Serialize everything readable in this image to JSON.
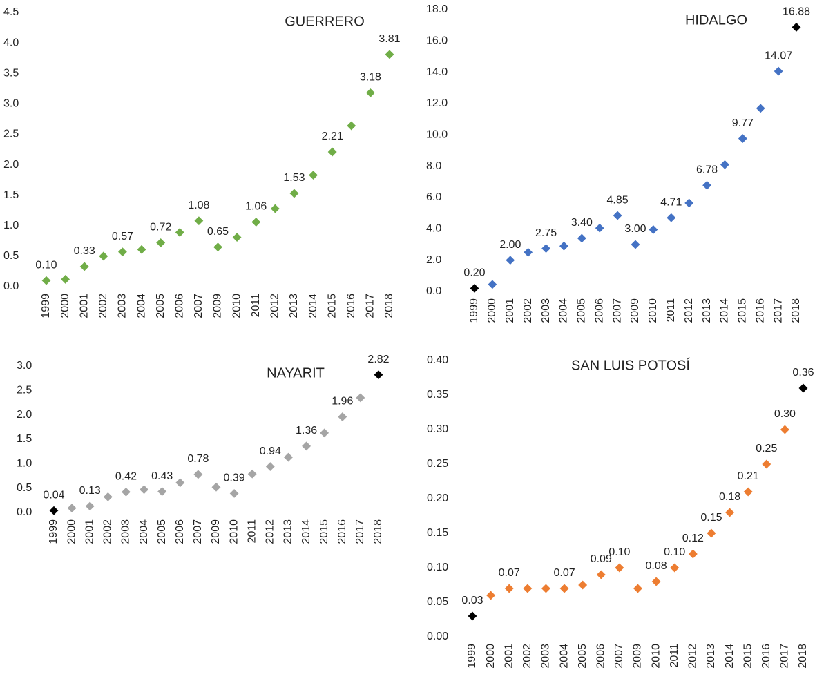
{
  "chart_data": [
    {
      "type": "scatter",
      "title": "GUERRERO",
      "categories": [
        "1999",
        "2000",
        "2001",
        "2002",
        "2003",
        "2004",
        "2005",
        "2006",
        "2007",
        "2009",
        "2010",
        "2011",
        "2012",
        "2013",
        "2014",
        "2015",
        "2016",
        "2017",
        "2018"
      ],
      "values": [
        0.1,
        0.12,
        0.33,
        0.5,
        0.57,
        0.61,
        0.72,
        0.89,
        1.08,
        0.65,
        0.81,
        1.06,
        1.28,
        1.53,
        1.83,
        2.21,
        2.64,
        3.18,
        3.81
      ],
      "value_labels": [
        "0.10",
        null,
        "0.33",
        null,
        "0.57",
        null,
        "0.72",
        null,
        "1.08",
        "0.65",
        null,
        "1.06",
        null,
        "1.53",
        null,
        "2.21",
        null,
        "3.18",
        "3.81"
      ],
      "colors": [
        "#70ad47",
        "#70ad47",
        "#70ad47",
        "#70ad47",
        "#70ad47",
        "#70ad47",
        "#70ad47",
        "#70ad47",
        "#70ad47",
        "#70ad47",
        "#70ad47",
        "#70ad47",
        "#70ad47",
        "#70ad47",
        "#70ad47",
        "#70ad47",
        "#70ad47",
        "#70ad47",
        "#70ad47"
      ],
      "ylim": [
        0,
        4.5
      ],
      "yticks": [
        {
          "value": 0,
          "label": "0.0"
        },
        0.5,
        {
          "value": 1,
          "label": "1.0"
        },
        1.5,
        {
          "value": 2,
          "label": "2.0"
        },
        2.5,
        {
          "value": 3,
          "label": "3.0"
        },
        3.5,
        {
          "value": 4,
          "label": "4.0"
        },
        4.5
      ]
    },
    {
      "type": "scatter",
      "title": "HIDALGO",
      "categories": [
        "1999",
        "2000",
        "2001",
        "2002",
        "2003",
        "2004",
        "2005",
        "2006",
        "2007",
        "2009",
        "2010",
        "2011",
        "2012",
        "2013",
        "2014",
        "2015",
        "2016",
        "2017",
        "2018"
      ],
      "values": [
        0.2,
        0.45,
        2.0,
        2.5,
        2.75,
        2.9,
        3.4,
        4.05,
        4.85,
        3.0,
        3.95,
        4.71,
        5.65,
        6.78,
        8.1,
        9.77,
        11.7,
        14.07,
        16.88
      ],
      "value_labels": [
        "0.20",
        null,
        "2.00",
        null,
        "2.75",
        null,
        "3.40",
        null,
        "4.85",
        "3.00",
        null,
        "4.71",
        null,
        "6.78",
        null,
        "9.77",
        null,
        "14.07",
        "16.88"
      ],
      "colors": [
        "#000000",
        "#4472c4",
        "#4472c4",
        "#4472c4",
        "#4472c4",
        "#4472c4",
        "#4472c4",
        "#4472c4",
        "#4472c4",
        "#4472c4",
        "#4472c4",
        "#4472c4",
        "#4472c4",
        "#4472c4",
        "#4472c4",
        "#4472c4",
        "#4472c4",
        "#4472c4",
        "#000000"
      ],
      "ylim": [
        0,
        18
      ],
      "yticks": [
        {
          "value": 0,
          "label": "0.0"
        },
        {
          "value": 2,
          "label": "2.0"
        },
        {
          "value": 4,
          "label": "4.0"
        },
        {
          "value": 6,
          "label": "6.0"
        },
        {
          "value": 8,
          "label": "8.0"
        },
        {
          "value": 10,
          "label": "10.0"
        },
        {
          "value": 12,
          "label": "12.0"
        },
        {
          "value": 14,
          "label": "14.0"
        },
        {
          "value": 16,
          "label": "16.0"
        },
        {
          "value": 18,
          "label": "18.0"
        }
      ]
    },
    {
      "type": "scatter",
      "title": "NAYARIT",
      "categories": [
        "1999",
        "2000",
        "2001",
        "2002",
        "2003",
        "2004",
        "2005",
        "2006",
        "2007",
        "2009",
        "2010",
        "2011",
        "2012",
        "2013",
        "2014",
        "2015",
        "2016",
        "2017",
        "2018"
      ],
      "values": [
        0.04,
        0.09,
        0.13,
        0.32,
        0.42,
        0.47,
        0.43,
        0.61,
        0.78,
        0.52,
        0.39,
        0.79,
        0.94,
        1.13,
        1.36,
        1.63,
        1.96,
        2.35,
        2.82
      ],
      "value_labels": [
        "0.04",
        null,
        "0.13",
        null,
        "0.42",
        null,
        "0.43",
        null,
        "0.78",
        null,
        "0.39",
        null,
        "0.94",
        null,
        "1.36",
        null,
        "1.96",
        null,
        "2.82"
      ],
      "colors": [
        "#000000",
        "#a5a5a5",
        "#a5a5a5",
        "#a5a5a5",
        "#a5a5a5",
        "#a5a5a5",
        "#a5a5a5",
        "#a5a5a5",
        "#a5a5a5",
        "#a5a5a5",
        "#a5a5a5",
        "#a5a5a5",
        "#a5a5a5",
        "#a5a5a5",
        "#a5a5a5",
        "#a5a5a5",
        "#a5a5a5",
        "#a5a5a5",
        "#000000"
      ],
      "ylim": [
        0,
        3
      ],
      "yticks": [
        {
          "value": 0,
          "label": "0.0"
        },
        0.5,
        {
          "value": 1,
          "label": "1.0"
        },
        1.5,
        {
          "value": 2,
          "label": "2.0"
        },
        2.5,
        {
          "value": 3,
          "label": "3.0"
        }
      ]
    },
    {
      "type": "scatter",
      "title": "SAN LUIS POTOSÍ",
      "categories": [
        "1999",
        "2000",
        "2001",
        "2002",
        "2003",
        "2004",
        "2005",
        "2006",
        "2007",
        "2009",
        "2010",
        "2011",
        "2012",
        "2013",
        "2014",
        "2015",
        "2016",
        "2017",
        "2018"
      ],
      "values": [
        0.03,
        0.06,
        0.07,
        0.07,
        0.07,
        0.07,
        0.075,
        0.09,
        0.1,
        0.07,
        0.08,
        0.1,
        0.12,
        0.15,
        0.18,
        0.21,
        0.25,
        0.3,
        0.36
      ],
      "value_labels": [
        "0.03",
        null,
        "0.07",
        null,
        null,
        "0.07",
        null,
        "0.09",
        "0.10",
        null,
        "0.08",
        "0.10",
        "0.12",
        "0.15",
        "0.18",
        "0.21",
        "0.25",
        "0.30",
        "0.36"
      ],
      "colors": [
        "#000000",
        "#ed7d31",
        "#ed7d31",
        "#ed7d31",
        "#ed7d31",
        "#ed7d31",
        "#ed7d31",
        "#ed7d31",
        "#ed7d31",
        "#ed7d31",
        "#ed7d31",
        "#ed7d31",
        "#ed7d31",
        "#ed7d31",
        "#ed7d31",
        "#ed7d31",
        "#ed7d31",
        "#ed7d31",
        "#000000"
      ],
      "ylim": [
        0,
        0.4
      ],
      "yticks": [
        {
          "value": 0,
          "label": "0.00"
        },
        0.05,
        {
          "value": 0.1,
          "label": "0.10"
        },
        0.15,
        {
          "value": 0.2,
          "label": "0.20"
        },
        0.25,
        {
          "value": 0.3,
          "label": "0.30"
        },
        0.35,
        {
          "value": 0.4,
          "label": "0.40"
        }
      ]
    }
  ]
}
